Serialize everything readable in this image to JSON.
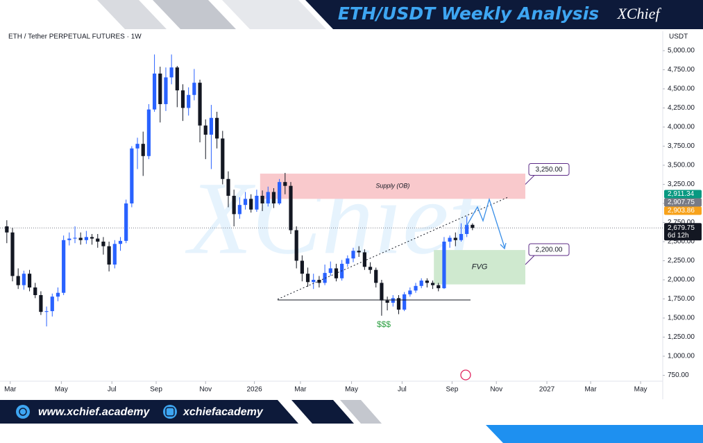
{
  "header": {
    "title": "ETH/USDT Weekly Analysis",
    "brand": "XChief"
  },
  "footer": {
    "website": "www.xchief.academy",
    "instagram": "xchiefacademy"
  },
  "chart_data": {
    "type": "candlestick",
    "title": "ETH / Tether PERPETUAL FUTURES · 1W",
    "y_axis_label": "USDT",
    "open": [
      2700,
      2620,
      2050,
      1930,
      2080,
      1900,
      1800,
      1580,
      1590,
      1780,
      1830,
      2520,
      2540,
      2550,
      2520,
      2560,
      2540,
      2500,
      2440,
      2200,
      2470,
      2510,
      3000,
      3720,
      3780,
      3620,
      4230,
      4700,
      4300,
      4650,
      4780,
      4480,
      4250,
      4420,
      4580,
      4020,
      3900,
      4120,
      3850,
      3320,
      3100,
      2860,
      2980,
      3060,
      2920,
      3100,
      3000,
      3150,
      3000,
      3280,
      3230,
      2650,
      2250,
      2080,
      1970,
      2000,
      1960,
      2090,
      2150,
      2020,
      2210,
      2280,
      2380,
      2360,
      2170,
      2130,
      1960,
      1730,
      1700,
      1760,
      1610,
      1810,
      1860,
      1920,
      1990,
      1960,
      1930,
      1890,
      2500,
      2550,
      2520,
      2600,
      2720
    ],
    "high": [
      2780,
      2680,
      2150,
      2120,
      2130,
      1960,
      1850,
      1650,
      1820,
      1900,
      2580,
      2620,
      2700,
      2620,
      2640,
      2600,
      2600,
      2560,
      2500,
      2520,
      2560,
      3050,
      3750,
      3860,
      3940,
      4300,
      4950,
      4790,
      4780,
      4950,
      4800,
      4560,
      4520,
      4760,
      4620,
      4100,
      4290,
      4200,
      3950,
      3420,
      3180,
      3080,
      3150,
      3120,
      3180,
      3170,
      3220,
      3200,
      3320,
      3400,
      3280,
      2700,
      2320,
      2160,
      2080,
      2050,
      2200,
      2240,
      2210,
      2260,
      2320,
      2420,
      2440,
      2400,
      2230,
      2160,
      2000,
      1780,
      1800,
      1800,
      1840,
      1900,
      1960,
      2020,
      2020,
      1990,
      1960,
      2560,
      2580,
      2620,
      2740,
      2830,
      2740
    ],
    "low": [
      2480,
      1980,
      1880,
      1870,
      1850,
      1760,
      1540,
      1390,
      1520,
      1720,
      1800,
      2450,
      2480,
      2460,
      2470,
      2460,
      2420,
      2330,
      2110,
      2150,
      2380,
      2480,
      2950,
      3450,
      3360,
      3580,
      4200,
      4060,
      4210,
      4560,
      4260,
      4080,
      4150,
      4350,
      3800,
      3580,
      3450,
      3720,
      3250,
      2950,
      2700,
      2800,
      2920,
      2880,
      2890,
      2900,
      2960,
      2940,
      2980,
      3120,
      2600,
      2150,
      1980,
      1910,
      1880,
      1900,
      1930,
      2050,
      1980,
      1990,
      2170,
      2230,
      2300,
      2130,
      2080,
      1900,
      1530,
      1600,
      1650,
      1550,
      1590,
      1780,
      1830,
      1890,
      1900,
      1880,
      1850,
      1880,
      2420,
      2440,
      2500,
      2560,
      2650
    ],
    "close": [
      2620,
      2050,
      1930,
      2080,
      1900,
      1800,
      1580,
      1590,
      1780,
      1830,
      2520,
      2540,
      2550,
      2520,
      2560,
      2540,
      2500,
      2440,
      2200,
      2470,
      2510,
      3000,
      3720,
      3780,
      3620,
      4230,
      4700,
      4300,
      4650,
      4780,
      4480,
      4250,
      4420,
      4580,
      4020,
      3900,
      4120,
      3850,
      3320,
      3100,
      2860,
      2980,
      3060,
      2920,
      3100,
      3000,
      3150,
      3000,
      3280,
      3230,
      2650,
      2250,
      2080,
      1970,
      2000,
      1960,
      2090,
      2150,
      2020,
      2210,
      2280,
      2380,
      2360,
      2170,
      2130,
      1960,
      1730,
      1700,
      1760,
      1610,
      1810,
      1860,
      1920,
      1990,
      1960,
      1930,
      1890,
      2500,
      2550,
      2520,
      2600,
      2720,
      2679.75
    ],
    "colors": {
      "up": "#2962ff",
      "down": "#131722"
    },
    "xlim": [
      -1.2,
      115.5
    ],
    "xticks": [
      {
        "value": 0.6,
        "label": "Mar"
      },
      {
        "value": 9.6,
        "label": "May"
      },
      {
        "value": 18.5,
        "label": "Jul"
      },
      {
        "value": 26.3,
        "label": "Sep"
      },
      {
        "value": 35,
        "label": "Nov"
      },
      {
        "value": 43.6,
        "label": "2026"
      },
      {
        "value": 51.7,
        "label": "Mar"
      },
      {
        "value": 60.7,
        "label": "May"
      },
      {
        "value": 69.6,
        "label": "Jul"
      },
      {
        "value": 78.4,
        "label": "Sep"
      },
      {
        "value": 86.2,
        "label": "Nov"
      },
      {
        "value": 95.1,
        "label": "2027"
      },
      {
        "value": 102.8,
        "label": "Mar"
      },
      {
        "value": 111.6,
        "label": "May"
      }
    ],
    "ylim": [
      482,
      5254
    ],
    "yticks": [
      {
        "value": 750,
        "label": "750.00"
      },
      {
        "value": 1000,
        "label": "1,000.00"
      },
      {
        "value": 1250,
        "label": "1,250.00"
      },
      {
        "value": 1500,
        "label": "1,500.00"
      },
      {
        "value": 1750,
        "label": "1,750.00"
      },
      {
        "value": 2000,
        "label": "2,000.00"
      },
      {
        "value": 2250,
        "label": "2,250.00"
      },
      {
        "value": 2500,
        "label": "2,500.00"
      },
      {
        "value": 2750,
        "label": "2,750.00"
      },
      {
        "value": 3000,
        "label": "3,000.00"
      },
      {
        "value": 3250,
        "label": "3,250.00"
      },
      {
        "value": 3500,
        "label": "3,500.00"
      },
      {
        "value": 3750,
        "label": "3,750.00"
      },
      {
        "value": 4000,
        "label": "4,000.00"
      },
      {
        "value": 4250,
        "label": "4,250.00"
      },
      {
        "value": 4500,
        "label": "4,500.00"
      },
      {
        "value": 4750,
        "label": "4,750.00"
      },
      {
        "value": 5000,
        "label": "5,000.00"
      }
    ],
    "price_tags": [
      {
        "value": 2911.34,
        "label": "2,911.34",
        "color": "#089981"
      },
      {
        "value": 2907.75,
        "label": "2,907.75",
        "color": "#787b86"
      },
      {
        "value": 2903.86,
        "label": "2,903.86",
        "color": "#f7a21b"
      }
    ],
    "current_price": {
      "value": 2679.75,
      "label": "2,679.75",
      "countdown": "6d 12h"
    },
    "zones": [
      {
        "name": "Supply (OB)",
        "low": 3060,
        "high": 3390,
        "x": [
          44.6,
          91.3
        ],
        "color": "#f9c9cc"
      },
      {
        "name": "FVG",
        "low": 1940,
        "high": 2390,
        "x": [
          75.2,
          91.3
        ],
        "color": "#cfe9cf"
      }
    ],
    "callouts": [
      {
        "value": 3250,
        "label": "3,250.00"
      },
      {
        "value": 2200,
        "label": "2,200.00"
      }
    ],
    "liquidity_label": "$$$"
  }
}
